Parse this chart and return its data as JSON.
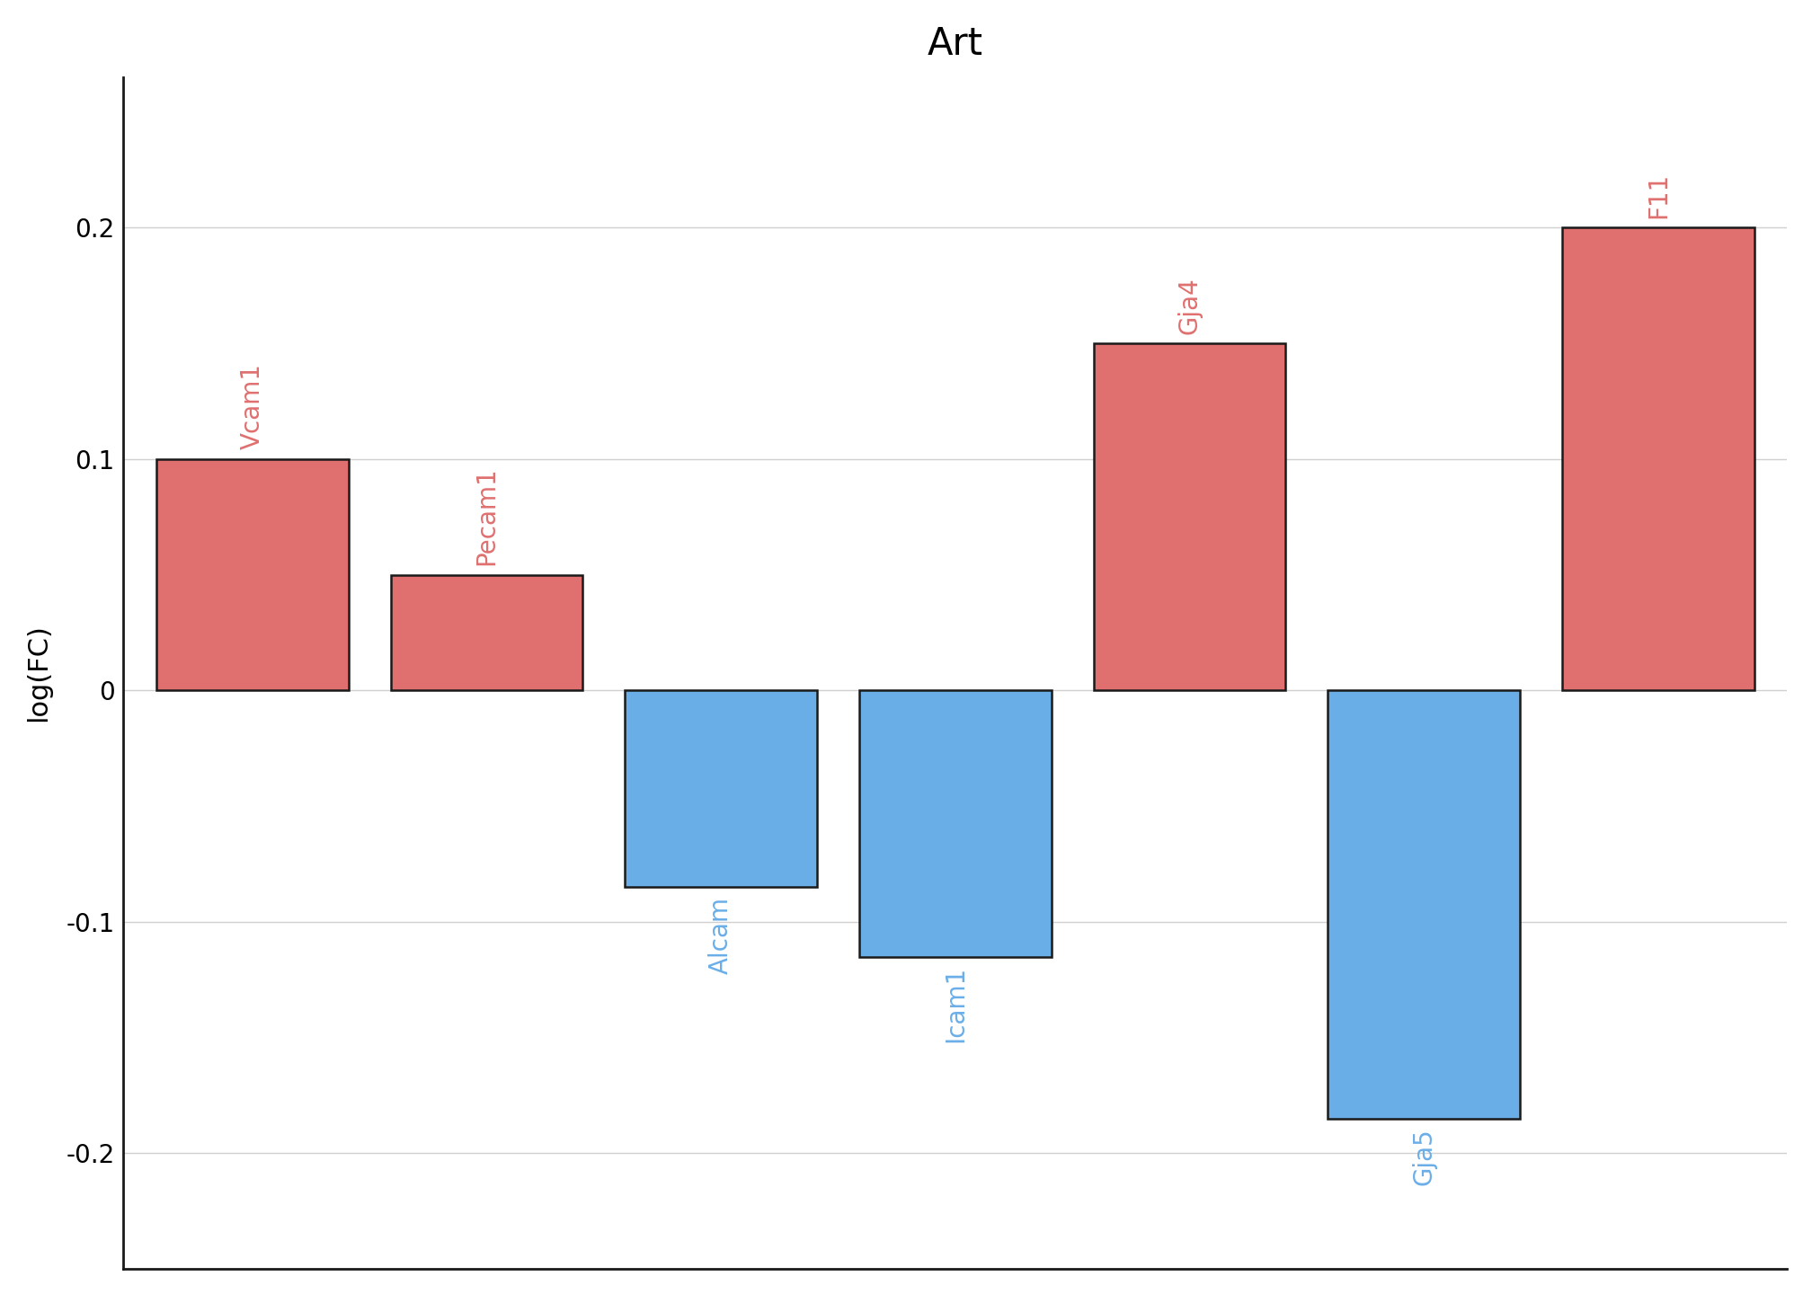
{
  "title": "Art",
  "ylabel": "log(FC)",
  "categories": [
    "Vcam1",
    "Pecam1",
    "Alcam",
    "Icam1",
    "Gja4",
    "Gja5",
    "F11"
  ],
  "values": [
    0.1,
    0.05,
    -0.085,
    -0.115,
    0.15,
    -0.185,
    0.2
  ],
  "bar_colors": [
    "#e07070",
    "#e07070",
    "#6aaee8",
    "#6aaee8",
    "#e07070",
    "#6aaee8",
    "#e07070"
  ],
  "label_colors": [
    "#e07070",
    "#e07070",
    "#6aaee8",
    "#6aaee8",
    "#e07070",
    "#6aaee8",
    "#e07070"
  ],
  "ylim": [
    -0.25,
    0.265
  ],
  "yticks": [
    -0.2,
    -0.1,
    0.0,
    0.1,
    0.2
  ],
  "ytick_labels": [
    "-0.2",
    "-0.1",
    "0",
    "0.1",
    "0.2"
  ],
  "bar_width": 0.82,
  "edgecolor": "#1a1a1a",
  "background_color": "#ffffff",
  "grid_color": "#d0d0d0",
  "title_fontsize": 30,
  "label_fontsize": 22,
  "tick_fontsize": 20,
  "annotation_fontsize": 20,
  "spine_color": "#1a1a1a",
  "xlim_left": -0.55,
  "xlim_right": 6.55
}
